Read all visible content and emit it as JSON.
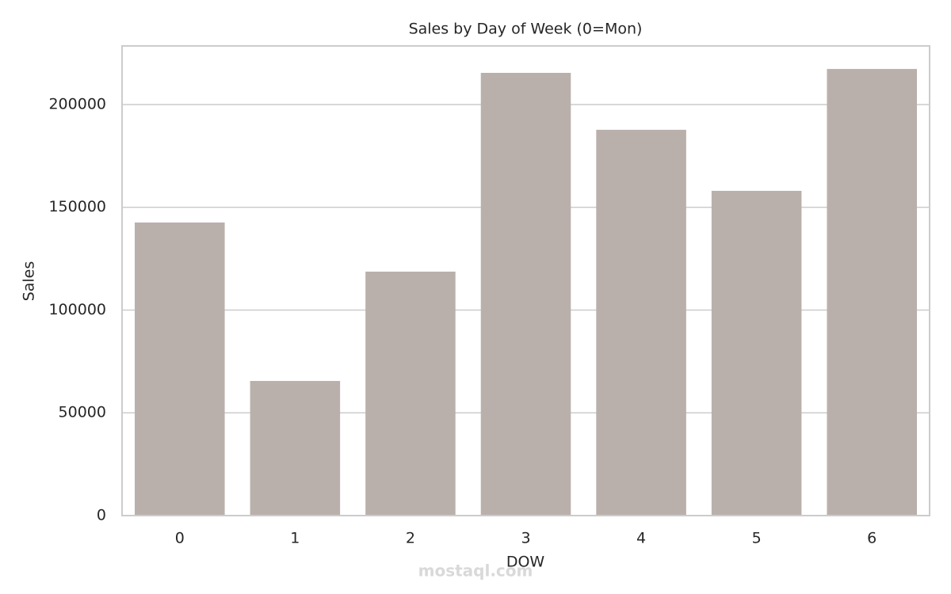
{
  "chart_data": {
    "type": "bar",
    "title": "Sales by Day of Week (0=Mon)",
    "x_label": "DOW",
    "y_label": "Sales",
    "categories": [
      "0",
      "1",
      "2",
      "3",
      "4",
      "5",
      "6"
    ],
    "values": [
      142600,
      65500,
      118700,
      215400,
      187700,
      158000,
      217300
    ],
    "color": "#b9b0ac",
    "ylim": [
      0,
      228500
    ],
    "yticks": [
      0,
      50000,
      100000,
      150000,
      200000
    ],
    "grid": true,
    "watermark": "mostaql.com"
  }
}
